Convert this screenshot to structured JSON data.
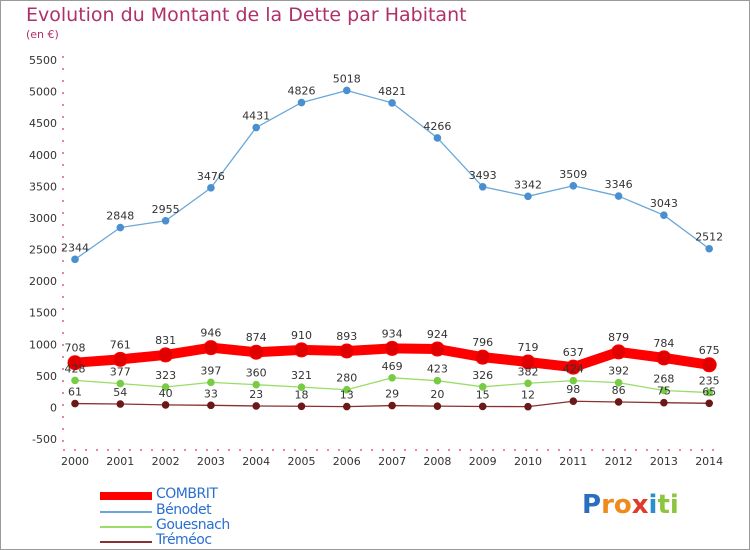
{
  "title": "Evolution du Montant de la Dette par Habitant",
  "subtitle": "(en €)",
  "chart_data": {
    "type": "line",
    "x": [
      "2000",
      "2001",
      "2002",
      "2003",
      "2004",
      "2005",
      "2006",
      "2007",
      "2008",
      "2009",
      "2010",
      "2011",
      "2012",
      "2013",
      "2014"
    ],
    "ylim": [
      -500,
      5500
    ],
    "yticks": [
      "-500",
      "0",
      "500",
      "1000",
      "1500",
      "2000",
      "2500",
      "3000",
      "3500",
      "4000",
      "4500",
      "5000",
      "5500"
    ],
    "grid": false,
    "legend_position": "bottom-left",
    "series": [
      {
        "name": "COMBRIT",
        "color": "#ff0000",
        "dot": "#e00000",
        "values": [
          708,
          761,
          831,
          946,
          874,
          910,
          893,
          934,
          924,
          796,
          719,
          637,
          879,
          784,
          675
        ],
        "labels": [
          "708",
          "761",
          "831",
          "946",
          "874",
          "910",
          "893",
          "934",
          "924",
          "796",
          "719",
          "637",
          "879",
          "784",
          "675"
        ]
      },
      {
        "name": "Bénodet",
        "color": "#6aa8d8",
        "dot": "#4a90d0",
        "values": [
          2344,
          2848,
          2955,
          3476,
          4431,
          4826,
          5018,
          4821,
          4266,
          3493,
          3342,
          3509,
          3346,
          3043,
          2512
        ],
        "labels": [
          "2344",
          "2848",
          "2955",
          "3476",
          "4431",
          "4826",
          "5018",
          "4821",
          "4266",
          "3493",
          "3342",
          "3509",
          "3346",
          "3043",
          "2512"
        ]
      },
      {
        "name": "Gouesnach",
        "color": "#99dd66",
        "dot": "#77cc44",
        "values": [
          428,
          377,
          323,
          397,
          360,
          321,
          280,
          469,
          423,
          326,
          382,
          424,
          392,
          268,
          235
        ],
        "labels": [
          "428",
          "377",
          "323",
          "397",
          "360",
          "321",
          "280",
          "469",
          "423",
          "326",
          "382",
          "424",
          "392",
          "268",
          "235"
        ]
      },
      {
        "name": "Tréméoc",
        "color": "#8a3030",
        "dot": "#6a1818",
        "values": [
          61,
          54,
          40,
          33,
          23,
          18,
          13,
          29,
          20,
          15,
          12,
          98,
          86,
          75,
          65
        ],
        "labels": [
          "61",
          "54",
          "40",
          "33",
          "23",
          "18",
          "13",
          "29",
          "20",
          "15",
          "12",
          "98",
          "86",
          "75",
          "65"
        ]
      }
    ]
  },
  "logo": {
    "letters": [
      {
        "ch": "P",
        "color": "#2a6fbf"
      },
      {
        "ch": "r",
        "color": "#f08a1c"
      },
      {
        "ch": "o",
        "color": "#f08a1c"
      },
      {
        "ch": "x",
        "color": "#e03a2a"
      },
      {
        "ch": "i",
        "color": "#2a8fd0"
      },
      {
        "ch": "t",
        "color": "#8cc63f"
      },
      {
        "ch": "i",
        "color": "#8cc63f"
      }
    ]
  }
}
